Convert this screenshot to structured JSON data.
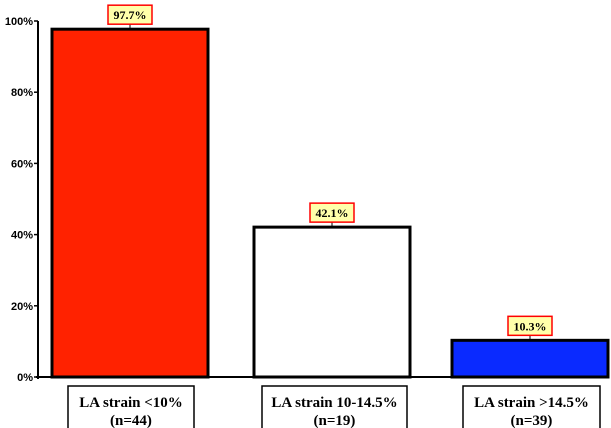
{
  "chart_data": {
    "type": "bar",
    "categories": [
      [
        "LA strain <10%",
        "(n=44)"
      ],
      [
        "LA strain 10-14.5%",
        "(n=19)"
      ],
      [
        "LA strain >14.5%",
        "(n=39)"
      ]
    ],
    "values": [
      97.7,
      42.1,
      10.3
    ],
    "data_labels": [
      "97.7%",
      "42.1%",
      "10.3%"
    ],
    "bar_colors": [
      "#ff2200",
      "#ffffff",
      "#0a2aff"
    ],
    "label_box_fill": "#ffffaa",
    "label_box_stroke": "#ff0000",
    "y_ticks": [
      "0%",
      "20%",
      "40%",
      "60%",
      "80%",
      "100%"
    ],
    "y_tick_values": [
      0,
      20,
      40,
      60,
      80,
      100
    ],
    "ylim": [
      0,
      100
    ],
    "title": "",
    "xlabel": "",
    "ylabel": "",
    "grid": false,
    "legend": "none"
  }
}
